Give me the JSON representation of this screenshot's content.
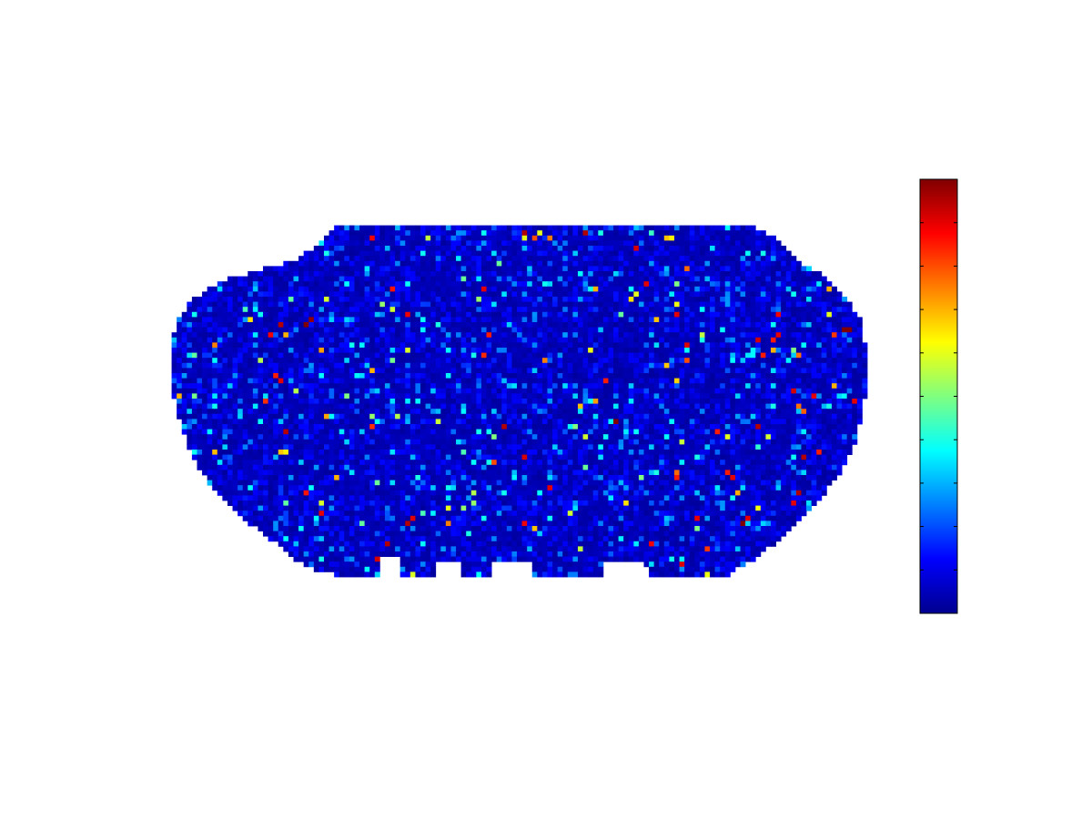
{
  "chart_data": {
    "type": "heatmap",
    "title": "",
    "xlabel": "",
    "ylabel": "",
    "colormap": "jet",
    "axes_visible": false,
    "grid": false,
    "grid_cols": 138,
    "grid_rows": 70,
    "value_range": [
      0,
      1
    ],
    "colorbar": {
      "location": "right",
      "tick_count": 10,
      "tick_labels": []
    },
    "background_level": 0.05,
    "hotspots": [
      {
        "col": 22,
        "row": 20,
        "value": 0.95
      },
      {
        "col": 27,
        "row": 20,
        "value": 1.0
      },
      {
        "col": 28,
        "row": 19,
        "value": 0.98
      },
      {
        "col": 23,
        "row": 22,
        "value": 0.7
      },
      {
        "col": 30,
        "row": 25,
        "value": 0.72
      },
      {
        "col": 25,
        "row": 33,
        "value": 0.55
      },
      {
        "col": 22,
        "row": 31,
        "value": 0.9
      },
      {
        "col": 21,
        "row": 30,
        "value": 0.85
      },
      {
        "col": 23,
        "row": 41,
        "value": 0.95
      },
      {
        "col": 33,
        "row": 50,
        "value": 0.7
      },
      {
        "col": 30,
        "row": 57,
        "value": 0.9
      },
      {
        "col": 47,
        "row": 59,
        "value": 0.95
      },
      {
        "col": 48,
        "row": 58,
        "value": 0.9
      },
      {
        "col": 43,
        "row": 63,
        "value": 0.95
      },
      {
        "col": 55,
        "row": 59,
        "value": 0.75
      },
      {
        "col": 55,
        "row": 56,
        "value": 0.6
      },
      {
        "col": 64,
        "row": 47,
        "value": 0.8
      },
      {
        "col": 58,
        "row": 45,
        "value": 0.45
      },
      {
        "col": 70,
        "row": 2,
        "value": 0.95
      },
      {
        "col": 72,
        "row": 3,
        "value": 0.8
      },
      {
        "col": 73,
        "row": 2,
        "value": 0.6
      },
      {
        "col": 82,
        "row": 2,
        "value": 0.95
      },
      {
        "col": 96,
        "row": 49,
        "value": 0.4
      },
      {
        "col": 100,
        "row": 50,
        "value": 0.85
      },
      {
        "col": 119,
        "row": 23,
        "value": 0.85
      },
      {
        "col": 120,
        "row": 22,
        "value": 0.9
      },
      {
        "col": 119,
        "row": 25,
        "value": 0.7
      },
      {
        "col": 133,
        "row": 21,
        "value": 1.0
      },
      {
        "col": 134,
        "row": 21,
        "value": 1.0
      },
      {
        "col": 127,
        "row": 34,
        "value": 0.9
      },
      {
        "col": 125,
        "row": 46,
        "value": 0.95
      },
      {
        "col": 123,
        "row": 55,
        "value": 0.9
      },
      {
        "col": 124,
        "row": 53,
        "value": 0.95
      },
      {
        "col": 113,
        "row": 59,
        "value": 1.0
      },
      {
        "col": 114,
        "row": 58,
        "value": 0.9
      },
      {
        "col": 111,
        "row": 50,
        "value": 0.9
      },
      {
        "col": 110,
        "row": 49,
        "value": 0.85
      },
      {
        "col": 116,
        "row": 40,
        "value": 0.95
      },
      {
        "col": 128,
        "row": 45,
        "value": 0.85
      },
      {
        "col": 131,
        "row": 32,
        "value": 0.7
      },
      {
        "col": 100,
        "row": 18,
        "value": 0.9
      },
      {
        "col": 86,
        "row": 31,
        "value": 0.85
      },
      {
        "col": 88,
        "row": 39,
        "value": 1.0
      },
      {
        "col": 102,
        "row": 27,
        "value": 0.8
      },
      {
        "col": 66,
        "row": 40,
        "value": 0.95
      },
      {
        "col": 74,
        "row": 27,
        "value": 0.75
      },
      {
        "col": 40,
        "row": 29,
        "value": 0.7
      },
      {
        "col": 45,
        "row": 38,
        "value": 0.55
      },
      {
        "col": 62,
        "row": 13,
        "value": 0.9
      },
      {
        "col": 63,
        "row": 22,
        "value": 0.85
      },
      {
        "col": 84,
        "row": 13,
        "value": 0.7
      },
      {
        "col": 92,
        "row": 14,
        "value": 0.6
      },
      {
        "col": 100,
        "row": 12,
        "value": 0.5
      },
      {
        "col": 9,
        "row": 24,
        "value": 0.75
      },
      {
        "col": 16,
        "row": 19,
        "value": 0.65
      },
      {
        "col": 18,
        "row": 27,
        "value": 0.55
      },
      {
        "col": 35,
        "row": 34,
        "value": 0.5
      },
      {
        "col": 49,
        "row": 50,
        "value": 0.4
      },
      {
        "col": 60,
        "row": 53,
        "value": 0.55
      },
      {
        "col": 80,
        "row": 40,
        "value": 0.5
      },
      {
        "col": 93,
        "row": 50,
        "value": 0.5
      },
      {
        "col": 104,
        "row": 60,
        "value": 0.5
      },
      {
        "col": 110,
        "row": 42,
        "value": 0.6
      },
      {
        "col": 117,
        "row": 26,
        "value": 0.85
      },
      {
        "col": 130,
        "row": 18,
        "value": 0.6
      },
      {
        "col": 135,
        "row": 35,
        "value": 0.9
      }
    ]
  }
}
